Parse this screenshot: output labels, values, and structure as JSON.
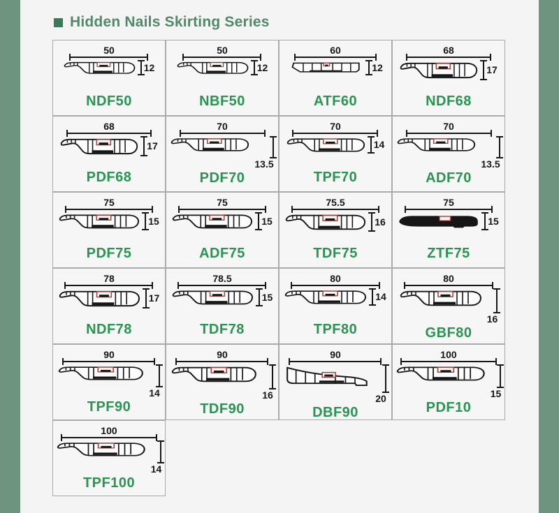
{
  "page": {
    "title": "Hidden Nails Skirting Series",
    "bullet": "■"
  },
  "colors": {
    "background": "#f3f4f3",
    "side_bar_green": "#6d947e",
    "title_square_green": "#3c7a5c",
    "title_text_green": "#4f8a6b",
    "model_text_green": "#2a9552",
    "drawing_ink": "#161616",
    "clip_detail_red": "#a83b32",
    "cell_border_gray": "#a9aaa9",
    "cell_background": "#f5f6f5"
  },
  "products": [
    {
      "model": "NDF50",
      "width": "50",
      "height": "12",
      "height_label_position": "right",
      "profile": "wing"
    },
    {
      "model": "NBF50",
      "width": "50",
      "height": "12",
      "height_label_position": "right",
      "profile": "wing"
    },
    {
      "model": "ATF60",
      "width": "60",
      "height": "12",
      "height_label_position": "right",
      "profile": "flat"
    },
    {
      "model": "NDF68",
      "width": "68",
      "height": "17",
      "height_label_position": "right",
      "profile": "wing"
    },
    {
      "model": "PDF68",
      "width": "68",
      "height": "17",
      "height_label_position": "right",
      "profile": "wing"
    },
    {
      "model": "PDF70",
      "width": "70",
      "height": "13.5",
      "height_label_position": "below",
      "profile": "wing"
    },
    {
      "model": "TPF70",
      "width": "70",
      "height": "14",
      "height_label_position": "right",
      "profile": "wing"
    },
    {
      "model": "ADF70",
      "width": "70",
      "height": "13.5",
      "height_label_position": "below",
      "profile": "wing"
    },
    {
      "model": "PDF75",
      "width": "75",
      "height": "15",
      "height_label_position": "right",
      "profile": "wing"
    },
    {
      "model": "ADF75",
      "width": "75",
      "height": "15",
      "height_label_position": "right",
      "profile": "wing"
    },
    {
      "model": "TDF75",
      "width": "75.5",
      "height": "16",
      "height_label_position": "right",
      "profile": "wing"
    },
    {
      "model": "ZTF75",
      "width": "75",
      "height": "15",
      "height_label_position": "right",
      "profile": "solid"
    },
    {
      "model": "NDF78",
      "width": "78",
      "height": "17",
      "height_label_position": "right",
      "profile": "wing"
    },
    {
      "model": "TDF78",
      "width": "78.5",
      "height": "15",
      "height_label_position": "right",
      "profile": "wing"
    },
    {
      "model": "TPF80",
      "width": "80",
      "height": "14",
      "height_label_position": "right",
      "profile": "wing"
    },
    {
      "model": "GBF80",
      "width": "80",
      "height": "16",
      "height_label_position": "below",
      "profile": "wing"
    },
    {
      "model": "TPF90",
      "width": "90",
      "height": "14",
      "height_label_position": "below",
      "profile": "wing"
    },
    {
      "model": "TDF90",
      "width": "90",
      "height": "16",
      "height_label_position": "below",
      "profile": "wing"
    },
    {
      "model": "DBF90",
      "width": "90",
      "height": "20",
      "height_label_position": "below",
      "profile": "wedge"
    },
    {
      "model": "PDF10",
      "width": "100",
      "height": "15",
      "height_label_position": "below",
      "profile": "wing"
    },
    {
      "model": "TPF100",
      "width": "100",
      "height": "14",
      "height_label_position": "below",
      "profile": "wing"
    }
  ]
}
